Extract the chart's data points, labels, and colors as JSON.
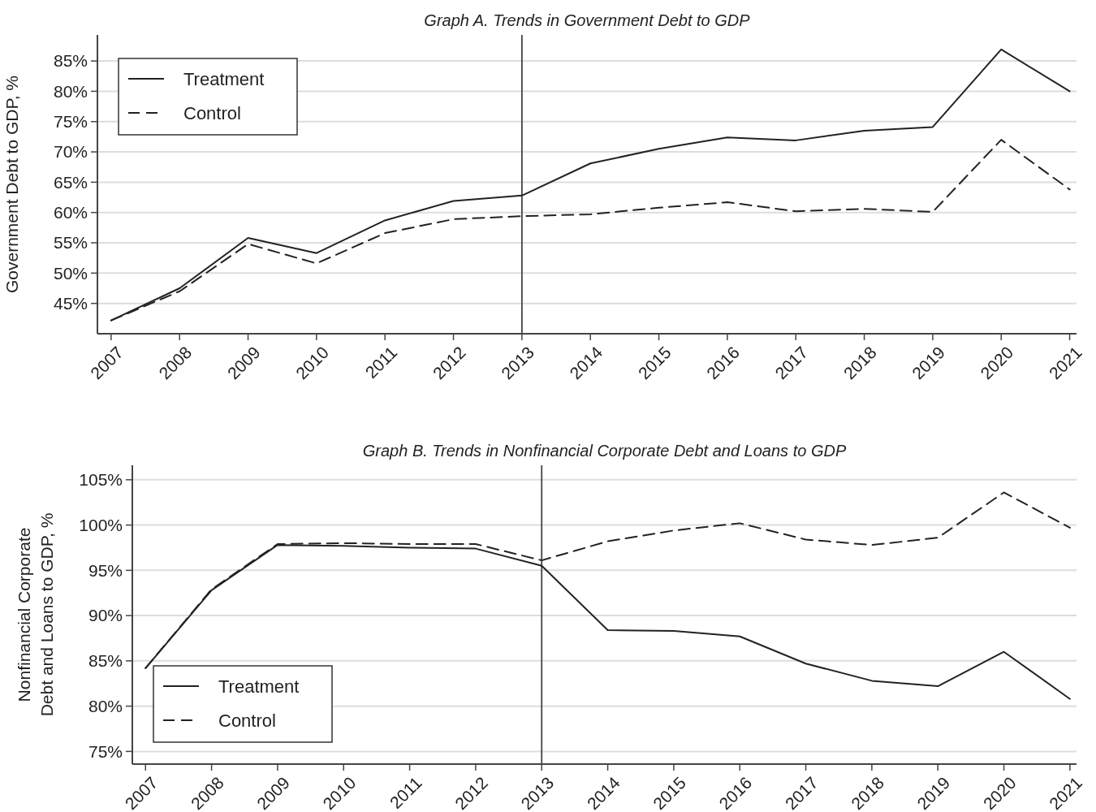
{
  "chart_data": [
    {
      "type": "line",
      "title": "Graph A. Trends in Government Debt to GDP",
      "ylabel": "Government Debt to GDP, %",
      "x": [
        2007,
        2008,
        2009,
        2010,
        2011,
        2012,
        2013,
        2014,
        2015,
        2016,
        2017,
        2018,
        2019,
        2020,
        2021
      ],
      "series": [
        {
          "name": "Treatment",
          "color": "#222222",
          "line_style": "solid",
          "values": [
            42.2,
            47.5,
            55.8,
            53.3,
            58.7,
            61.9,
            62.8,
            68.1,
            70.5,
            72.4,
            71.9,
            73.5,
            74.1,
            86.9,
            80.0
          ]
        },
        {
          "name": "Control",
          "color": "#222222",
          "line_style": "dashed",
          "values": [
            42.2,
            47.0,
            54.8,
            51.6,
            56.6,
            58.9,
            59.4,
            59.7,
            60.8,
            61.7,
            60.2,
            60.6,
            60.1,
            72.0,
            63.8
          ]
        }
      ],
      "xlim": [
        2006.8,
        2021.1
      ],
      "xticks": [
        2007,
        2008,
        2009,
        2010,
        2011,
        2012,
        2013,
        2014,
        2015,
        2016,
        2017,
        2018,
        2019,
        2020,
        2021
      ],
      "ylim": [
        40,
        89.3
      ],
      "yticks": [
        {
          "value": 45,
          "label": "45%"
        },
        {
          "value": 50,
          "label": "50%"
        },
        {
          "value": 55,
          "label": "55%"
        },
        {
          "value": 60,
          "label": "60%"
        },
        {
          "value": 65,
          "label": "65%"
        },
        {
          "value": 70,
          "label": "70%"
        },
        {
          "value": 75,
          "label": "75%"
        },
        {
          "value": 80,
          "label": "80%"
        },
        {
          "value": 85,
          "label": "85%"
        }
      ],
      "ref_lines": [
        {
          "axis": "x",
          "value": 2013,
          "color": "#444444"
        }
      ],
      "grid": "y",
      "legend": "top left",
      "marker": "none"
    },
    {
      "type": "line",
      "title": "Graph B. Trends in Nonfinancial Corporate Debt and Loans to GDP",
      "ylabel": "Nonfinancial Corporate\nDebt and Loans to GDP, %",
      "x": [
        2007,
        2008,
        2009,
        2010,
        2011,
        2012,
        2013,
        2014,
        2015,
        2016,
        2017,
        2018,
        2019,
        2020,
        2021
      ],
      "series": [
        {
          "name": "Treatment",
          "color": "#222222",
          "line_style": "solid",
          "values": [
            84.2,
            92.8,
            97.8,
            97.7,
            97.5,
            97.4,
            95.5,
            88.4,
            88.3,
            87.7,
            84.7,
            82.8,
            82.2,
            86.0,
            80.8
          ]
        },
        {
          "name": "Control",
          "color": "#222222",
          "line_style": "dashed",
          "values": [
            84.2,
            92.9,
            97.9,
            98.0,
            97.9,
            97.9,
            96.1,
            98.2,
            99.4,
            100.2,
            98.4,
            97.8,
            98.6,
            103.6,
            99.7
          ]
        }
      ],
      "xlim": [
        2006.8,
        2021.1
      ],
      "xticks": [
        2007,
        2008,
        2009,
        2010,
        2011,
        2012,
        2013,
        2014,
        2015,
        2016,
        2017,
        2018,
        2019,
        2020,
        2021
      ],
      "ylim": [
        73.6,
        106.6
      ],
      "yticks": [
        {
          "value": 75,
          "label": "75%"
        },
        {
          "value": 80,
          "label": "80%"
        },
        {
          "value": 85,
          "label": "85%"
        },
        {
          "value": 90,
          "label": "90%"
        },
        {
          "value": 95,
          "label": "95%"
        },
        {
          "value": 100,
          "label": "100%"
        },
        {
          "value": 105,
          "label": "105%"
        }
      ],
      "ref_lines": [
        {
          "axis": "x",
          "value": 2013,
          "color": "#444444"
        }
      ],
      "grid": "y",
      "legend": "bottom left",
      "marker": "none"
    }
  ]
}
